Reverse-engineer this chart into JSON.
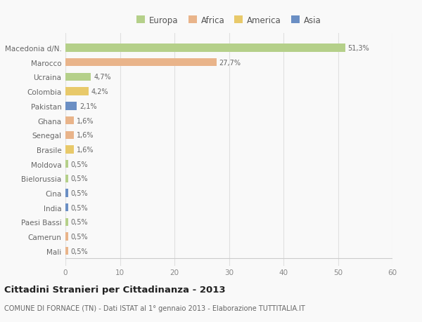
{
  "countries": [
    "Macedonia d/N.",
    "Marocco",
    "Ucraina",
    "Colombia",
    "Pakistan",
    "Ghana",
    "Senegal",
    "Brasile",
    "Moldova",
    "Bielorussia",
    "Cina",
    "India",
    "Paesi Bassi",
    "Camerun",
    "Mali"
  ],
  "values": [
    51.3,
    27.7,
    4.7,
    4.2,
    2.1,
    1.6,
    1.6,
    1.6,
    0.5,
    0.5,
    0.5,
    0.5,
    0.5,
    0.5,
    0.5
  ],
  "labels": [
    "51,3%",
    "27,7%",
    "4,7%",
    "4,2%",
    "2,1%",
    "1,6%",
    "1,6%",
    "1,6%",
    "0,5%",
    "0,5%",
    "0,5%",
    "0,5%",
    "0,5%",
    "0,5%",
    "0,5%"
  ],
  "colors": [
    "#b5d08a",
    "#e9b48a",
    "#b5d08a",
    "#e8c96a",
    "#6b8fc4",
    "#e9b48a",
    "#e9b48a",
    "#e8c96a",
    "#b5d08a",
    "#b5d08a",
    "#6b8fc4",
    "#6b8fc4",
    "#b5d08a",
    "#e9b48a",
    "#e9b48a"
  ],
  "legend_labels": [
    "Europa",
    "Africa",
    "America",
    "Asia"
  ],
  "legend_colors": [
    "#b5d08a",
    "#e9b48a",
    "#e8c96a",
    "#6b8fc4"
  ],
  "title": "Cittadini Stranieri per Cittadinanza - 2013",
  "subtitle": "COMUNE DI FORNACE (TN) - Dati ISTAT al 1° gennaio 2013 - Elaborazione TUTTITALIA.IT",
  "xlim": [
    0,
    60
  ],
  "xticks": [
    0,
    10,
    20,
    30,
    40,
    50,
    60
  ],
  "bg_color": "#f9f9f9",
  "grid_color": "#e0e0e0",
  "bar_height": 0.55
}
